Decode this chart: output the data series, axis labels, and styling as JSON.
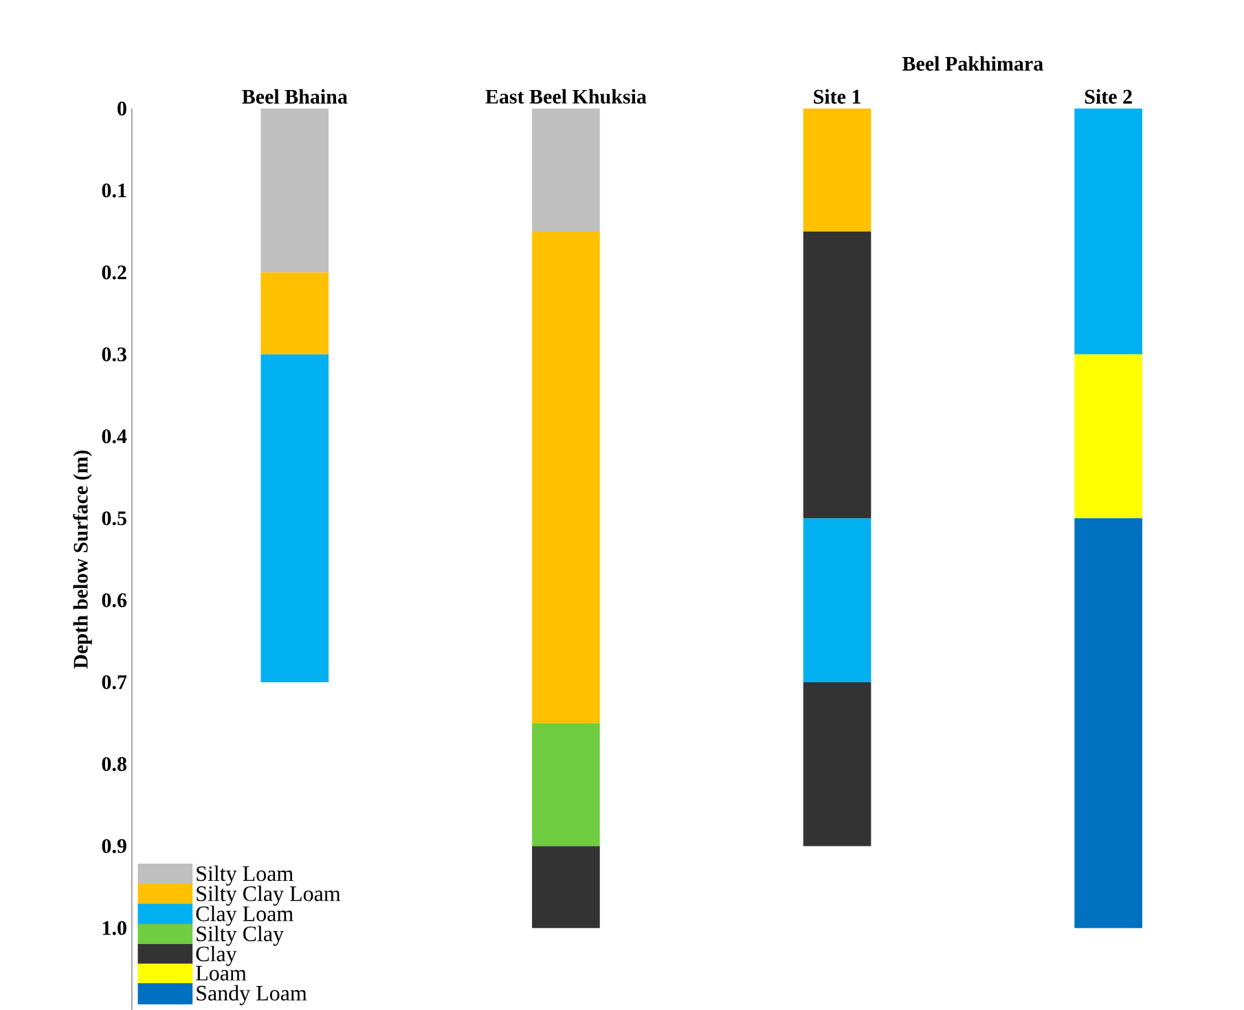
{
  "chart_data": {
    "type": "bar",
    "ylabel": "Depth below Surface (m)",
    "categories": [
      "Beel Bhaina",
      "East Beel Khuksia",
      "Site 1",
      "Site 2"
    ],
    "annotations": [
      "Beel Pakhimara"
    ],
    "ylim": [
      1.1,
      0
    ],
    "yticks": [
      0,
      0.1,
      0.2,
      0.3,
      0.4,
      0.5,
      0.6,
      0.7,
      0.8,
      0.9,
      {
        "value": 1,
        "label": "1.0"
      }
    ],
    "legend": "bottom left",
    "series": [
      {
        "name": "Silty Loam",
        "color": "#bfbfbf",
        "base": [
          0,
          0,
          null,
          null
        ],
        "values": [
          0.2,
          0.15,
          null,
          null
        ]
      },
      {
        "name": "Silty Clay Loam",
        "color": "#ffc000",
        "base": [
          0.2,
          0.15,
          0,
          null
        ],
        "values": [
          0.1,
          0.6,
          0.15,
          null
        ]
      },
      {
        "name": "Clay Loam",
        "color": "#00b0f0",
        "base": [
          0.3,
          null,
          0.5,
          0
        ],
        "values": [
          0.4,
          null,
          0.2,
          0.3
        ]
      },
      {
        "name": "Silty Clay",
        "color": "#70cc40",
        "base": [
          null,
          0.75,
          null,
          null
        ],
        "values": [
          null,
          0.15,
          null,
          null
        ]
      },
      {
        "name": "Clay",
        "color": "#333333",
        "base": [
          null,
          0.9,
          0.15,
          null
        ],
        "values": [
          null,
          0.1,
          0.35,
          null
        ]
      },
      {
        "name": "Loam",
        "color": "#ffff00",
        "base": [
          null,
          null,
          null,
          0.3
        ],
        "values": [
          null,
          null,
          null,
          0.2
        ]
      },
      {
        "name": "Sandy Loam",
        "color": "#0070c0",
        "base": [
          null,
          null,
          null,
          0.5
        ],
        "values": [
          null,
          null,
          null,
          0.5
        ]
      },
      {
        "color": "#333333",
        "base": [
          null,
          null,
          0.7,
          null
        ],
        "values": [
          null,
          null,
          0.2,
          null
        ]
      }
    ]
  }
}
